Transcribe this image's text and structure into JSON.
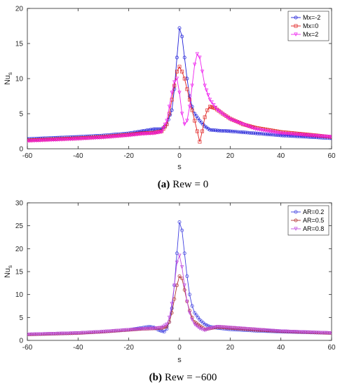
{
  "chart_data": [
    {
      "type": "line",
      "caption": {
        "letter": "(a)",
        "text": "Rew = 0"
      },
      "xlabel": "s",
      "ylabel": "Nu",
      "ylabel_sub": "s",
      "xlim": [
        -60,
        60
      ],
      "ylim": [
        0,
        20
      ],
      "xticks": [
        -60,
        -40,
        -20,
        0,
        20,
        40,
        60
      ],
      "yticks": [
        0,
        5,
        10,
        15,
        20
      ],
      "legend_position": "top-right",
      "series": [
        {
          "name": "Mx=-2",
          "color": "#1f1fd8",
          "marker": "circle",
          "x": [
            -60,
            -40,
            -30,
            -20,
            -15,
            -10,
            -7,
            -5,
            -3,
            -2,
            -1,
            0,
            1,
            2,
            3,
            4,
            5,
            6,
            8,
            10,
            12,
            15,
            20,
            30,
            40,
            60
          ],
          "y": [
            1.4,
            1.7,
            1.9,
            2.2,
            2.5,
            2.8,
            2.8,
            3.5,
            5.5,
            8.5,
            13,
            17.2,
            16,
            13,
            10,
            7.5,
            6,
            5,
            4,
            3.2,
            2.7,
            2.6,
            2.5,
            2.2,
            1.9,
            1.5
          ]
        },
        {
          "name": "Mx=0",
          "color": "#e02020",
          "marker": "square",
          "x": [
            -60,
            -40,
            -30,
            -20,
            -15,
            -10,
            -7,
            -5,
            -4,
            -3,
            -2,
            -1,
            0,
            1,
            2,
            3,
            4,
            5,
            6,
            7,
            8,
            9,
            10,
            11,
            12,
            14,
            17,
            20,
            25,
            30,
            40,
            60
          ],
          "y": [
            1.2,
            1.5,
            1.7,
            2.0,
            2.2,
            2.3,
            2.5,
            3.5,
            5,
            7,
            9,
            11,
            11.7,
            11,
            10,
            8.5,
            7,
            5.5,
            4,
            2.5,
            1.0,
            2.5,
            4.5,
            5.5,
            6,
            5.8,
            5,
            4.3,
            3.5,
            3.0,
            2.4,
            1.7
          ]
        },
        {
          "name": "Mx=2",
          "color": "#ee22ee",
          "marker": "triangle-down",
          "x": [
            -60,
            -40,
            -30,
            -20,
            -15,
            -10,
            -7,
            -5,
            -4,
            -3,
            -2,
            -1,
            0,
            1,
            2,
            3,
            4,
            5,
            6,
            7,
            8,
            9,
            10,
            12,
            15,
            20,
            30,
            40,
            60
          ],
          "y": [
            1.1,
            1.4,
            1.6,
            1.9,
            2.1,
            2.2,
            2.4,
            4,
            6,
            8,
            9.5,
            10,
            8,
            5,
            3.5,
            4,
            6,
            9,
            12,
            13.5,
            13,
            11,
            9,
            7,
            5.5,
            4.2,
            2.8,
            2.2,
            1.7
          ]
        }
      ]
    },
    {
      "type": "line",
      "caption": {
        "letter": "(b)",
        "text": "Rew = −600"
      },
      "xlabel": "s",
      "ylabel": "Nu",
      "ylabel_sub": "s",
      "xlim": [
        -60,
        60
      ],
      "ylim": [
        0,
        30
      ],
      "xticks": [
        -60,
        -40,
        -20,
        0,
        20,
        40,
        60
      ],
      "yticks": [
        0,
        5,
        10,
        15,
        20,
        25,
        30
      ],
      "legend_position": "top-right",
      "series": [
        {
          "name": "AR=0.2",
          "color": "#3f3fe0",
          "marker": "circle",
          "x": [
            -60,
            -40,
            -30,
            -20,
            -15,
            -12,
            -10,
            -8,
            -6,
            -5,
            -4,
            -3,
            -2,
            -1,
            0,
            1,
            2,
            3,
            4,
            5,
            6,
            8,
            10,
            12,
            15,
            20,
            30,
            40,
            60
          ],
          "y": [
            1.3,
            1.6,
            1.9,
            2.3,
            2.7,
            3.0,
            2.8,
            2.2,
            1.9,
            2.5,
            4,
            7,
            12,
            19,
            25.8,
            24,
            19,
            14,
            10,
            7.5,
            6,
            4.5,
            3.5,
            3,
            2.7,
            2.4,
            2.1,
            1.9,
            1.6
          ]
        },
        {
          "name": "AR=0.5",
          "color": "#b03030",
          "marker": "circle",
          "x": [
            -60,
            -40,
            -30,
            -20,
            -15,
            -10,
            -7,
            -5,
            -4,
            -3,
            -2,
            -1,
            0,
            1,
            2,
            3,
            4,
            5,
            6,
            8,
            10,
            12,
            15,
            20,
            30,
            40,
            60
          ],
          "y": [
            1.3,
            1.6,
            1.9,
            2.3,
            2.5,
            2.6,
            2.7,
            3,
            4,
            6,
            9,
            12,
            14,
            13.5,
            11,
            8.5,
            6.5,
            5,
            4,
            3.2,
            2.4,
            2.6,
            2.9,
            2.7,
            2.3,
            2.0,
            1.6
          ]
        },
        {
          "name": "AR=0.8",
          "color": "#c050e0",
          "marker": "triangle-down",
          "x": [
            -60,
            -40,
            -30,
            -20,
            -15,
            -10,
            -7,
            -5,
            -4,
            -3,
            -2,
            -1,
            0,
            1,
            2,
            3,
            4,
            5,
            6,
            8,
            10,
            12,
            15,
            20,
            30,
            40,
            60
          ],
          "y": [
            1.3,
            1.6,
            1.9,
            2.3,
            2.5,
            2.6,
            2.8,
            3.5,
            5,
            8,
            12,
            17,
            18.5,
            16,
            12,
            8.5,
            6,
            4.5,
            3.5,
            2.6,
            2.2,
            2.6,
            3.0,
            2.8,
            2.4,
            2.0,
            1.6
          ]
        }
      ]
    }
  ]
}
